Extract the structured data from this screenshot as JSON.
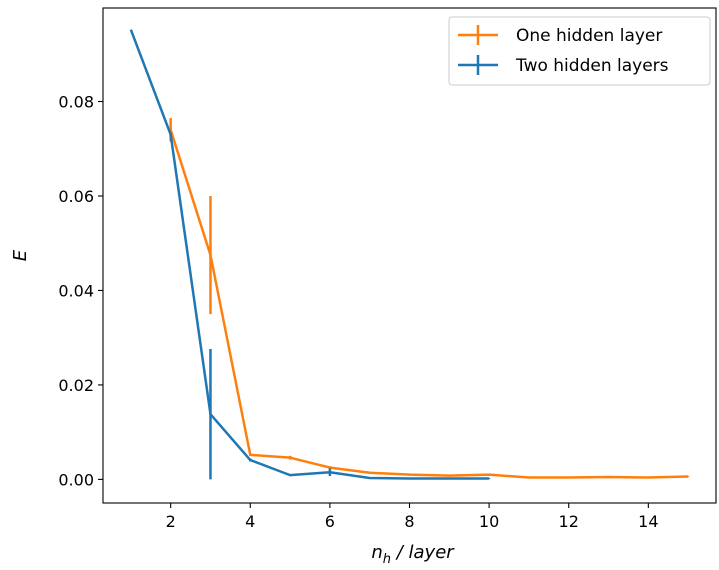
{
  "chart_data": {
    "type": "line",
    "title": "",
    "xlabel": {
      "base": "n",
      "sub": "h",
      "rest": " / layer"
    },
    "ylabel": "E",
    "xlim": [
      0.3,
      15.7
    ],
    "ylim": [
      -0.005,
      0.0998
    ],
    "x_ticks": [
      2,
      4,
      6,
      8,
      10,
      12,
      14
    ],
    "x_tick_labels": [
      "2",
      "4",
      "6",
      "8",
      "10",
      "12",
      "14"
    ],
    "y_ticks": [
      0.0,
      0.02,
      0.04,
      0.06,
      0.08
    ],
    "y_tick_labels": [
      "0.00",
      "0.02",
      "0.04",
      "0.06",
      "0.08"
    ],
    "grid": false,
    "legend": {
      "position": "top-right"
    },
    "series": [
      {
        "name": "One hidden layer",
        "color": "#ff7f0e",
        "x": [
          2,
          3,
          4,
          5,
          6,
          7,
          8,
          9,
          10,
          11,
          12,
          13,
          14,
          15
        ],
        "y": [
          0.074,
          0.0475,
          0.0052,
          0.0046,
          0.0025,
          0.0014,
          0.001,
          0.0008,
          0.001,
          0.0004,
          0.0004,
          0.0005,
          0.0004,
          0.0006
        ],
        "yerr": [
          0.0025,
          0.0125,
          0.0002,
          0.0004,
          0.0003,
          0.0001,
          0.0002,
          0.0001,
          0.0002,
          0.0001,
          0.0001,
          0.0001,
          0.0001,
          0.0001
        ]
      },
      {
        "name": "Two hidden layers",
        "color": "#1f77b4",
        "x": [
          1,
          2,
          3,
          4,
          5,
          6,
          7,
          8,
          9,
          10
        ],
        "y": [
          0.0952,
          0.073,
          0.0138,
          0.0041,
          0.0009,
          0.0015,
          0.0003,
          0.0002,
          0.0002,
          0.0002
        ],
        "yerr": [
          0.0,
          0.0004,
          0.0138,
          0.0003,
          0.0002,
          0.0008,
          0.0001,
          0.0001,
          0.0001,
          0.0001
        ]
      }
    ]
  }
}
